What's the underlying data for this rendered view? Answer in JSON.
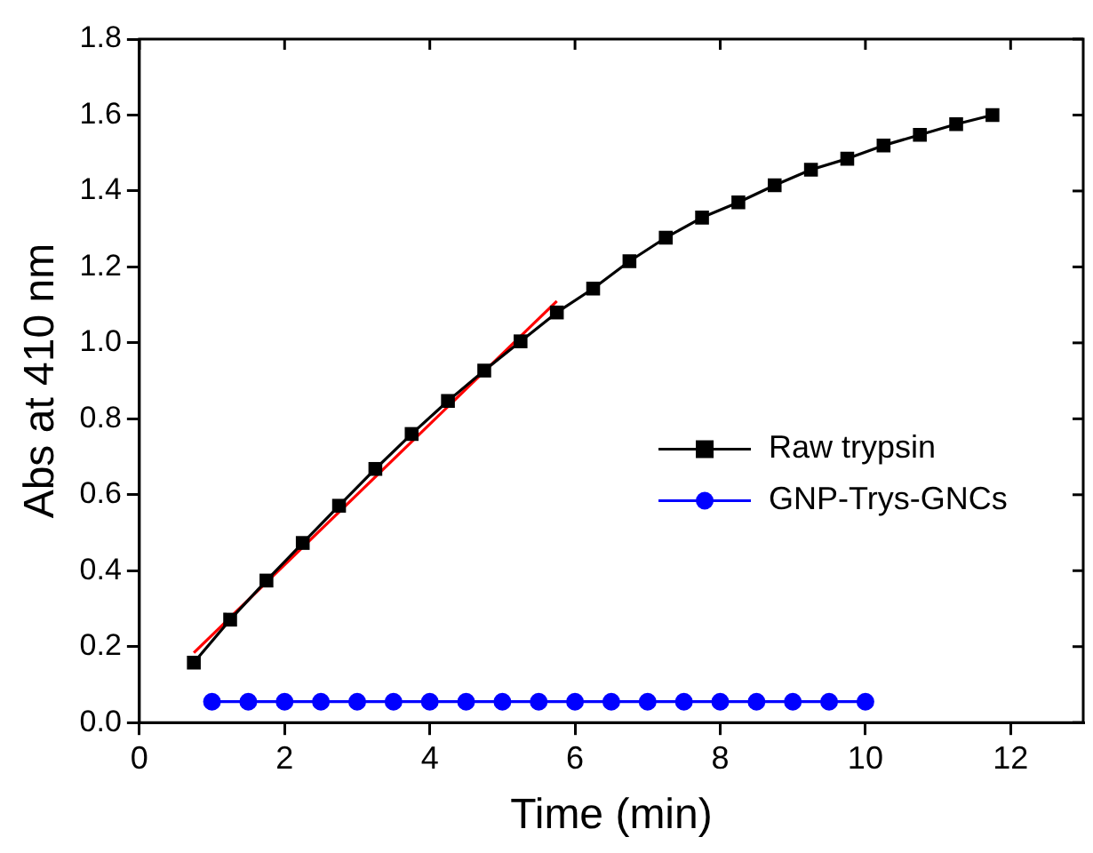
{
  "chart_data": {
    "type": "line",
    "xlabel": "Time (min)",
    "ylabel": "Abs at 410 nm",
    "xlim": [
      0,
      13
    ],
    "xticks": [
      0,
      2,
      4,
      6,
      8,
      10,
      12
    ],
    "ylim": [
      0,
      1.8
    ],
    "yticks": [
      {
        "value": 0,
        "label": "0.0"
      },
      0.2,
      0.4,
      0.6,
      0.8,
      {
        "value": 1,
        "label": "1.0"
      },
      1.2,
      1.4,
      1.6,
      1.8
    ],
    "grid": false,
    "legend": "right",
    "series": [
      {
        "name": "Raw trypsin",
        "color": "#000000",
        "marker": "square",
        "x": [
          0.75,
          1.25,
          1.75,
          2.25,
          2.75,
          3.25,
          3.75,
          4.25,
          4.75,
          5.25,
          5.75,
          6.25,
          6.75,
          7.25,
          7.75,
          8.25,
          8.75,
          9.25,
          9.75,
          10.25,
          10.75,
          11.25,
          11.75
        ],
        "values": [
          0.158,
          0.271,
          0.374,
          0.473,
          0.571,
          0.668,
          0.76,
          0.847,
          0.927,
          1.004,
          1.08,
          1.143,
          1.215,
          1.277,
          1.33,
          1.37,
          1.415,
          1.456,
          1.485,
          1.52,
          1.548,
          1.576,
          1.6
        ]
      },
      {
        "name": "GNP-Trys-GNCs",
        "color": "#0000ff",
        "marker": "circle",
        "x": [
          1,
          1.5,
          2,
          2.5,
          3,
          3.5,
          4,
          4.5,
          5,
          5.5,
          6,
          6.5,
          7,
          7.5,
          8,
          8.5,
          9,
          9.5,
          10
        ],
        "values": [
          0.055,
          0.055,
          0.055,
          0.055,
          0.055,
          0.055,
          0.055,
          0.055,
          0.055,
          0.055,
          0.055,
          0.055,
          0.055,
          0.055,
          0.055,
          0.055,
          0.055,
          0.055,
          0.055
        ]
      },
      {
        "type": "line",
        "color": "#ff0000",
        "marker": "none",
        "x": [
          0.75,
          5.75
        ],
        "values": [
          0.184,
          1.11
        ]
      }
    ]
  }
}
